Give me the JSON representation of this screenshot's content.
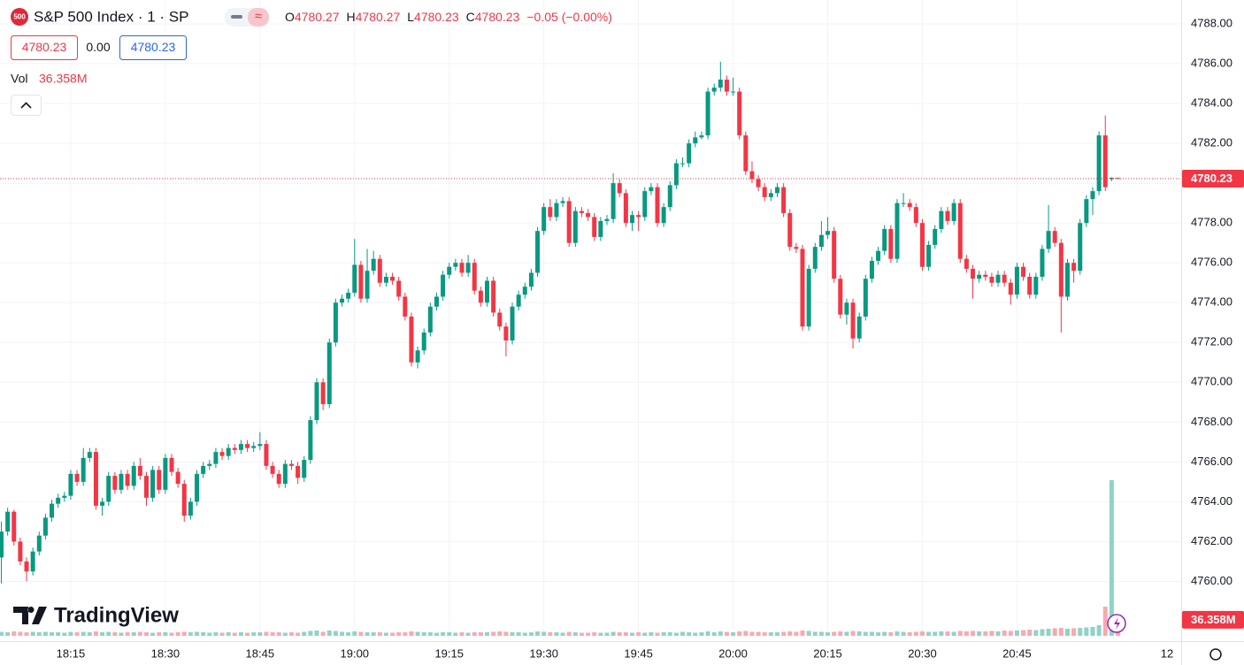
{
  "chart_data": {
    "type": "candlestick",
    "badge": "500",
    "title": "S&P 500 Index · 1 · SP",
    "ohlc_labels": [
      "O",
      "H",
      "L",
      "C"
    ],
    "change_label": "−0.05 (−0.00%)",
    "sell_price": "4780.23",
    "spread": "0.00",
    "buy_price": "4780.23",
    "volume_name": "Vol",
    "volume_last_label": "36.358M",
    "logo": "TradingView",
    "next_day_label": "12",
    "up_color": "#089981",
    "down_color": "#f23645",
    "volume_up_color": "#8fd3c7",
    "volume_down_color": "#f7aab0",
    "grid": true,
    "ylim": [
      4757,
      4789.2
    ],
    "yticks": [
      {
        "value": 4760,
        "label": "4760.00"
      },
      {
        "value": 4762,
        "label": "4762.00"
      },
      {
        "value": 4764,
        "label": "4764.00"
      },
      {
        "value": 4766,
        "label": "4766.00"
      },
      {
        "value": 4768,
        "label": "4768.00"
      },
      {
        "value": 4770,
        "label": "4770.00"
      },
      {
        "value": 4772,
        "label": "4772.00"
      },
      {
        "value": 4774,
        "label": "4774.00"
      },
      {
        "value": 4776,
        "label": "4776.00"
      },
      {
        "value": 4778,
        "label": "4778.00"
      },
      {
        "value": 4780,
        "label": "4780.00"
      },
      {
        "value": 4782,
        "label": "4782.00"
      },
      {
        "value": 4784,
        "label": "4784.00"
      },
      {
        "value": 4786,
        "label": "4786.00"
      },
      {
        "value": 4788,
        "label": "4788.00"
      }
    ],
    "categories": [
      null,
      null,
      null,
      null,
      null,
      null,
      null,
      null,
      null,
      null,
      null,
      "18:15",
      null,
      null,
      null,
      null,
      null,
      null,
      null,
      null,
      null,
      null,
      null,
      null,
      null,
      null,
      "18:30",
      null,
      null,
      null,
      null,
      null,
      null,
      null,
      null,
      null,
      null,
      null,
      null,
      null,
      null,
      "18:45",
      null,
      null,
      null,
      null,
      null,
      null,
      null,
      null,
      null,
      null,
      null,
      null,
      null,
      null,
      "19:00",
      null,
      null,
      null,
      null,
      null,
      null,
      null,
      null,
      null,
      null,
      null,
      null,
      null,
      null,
      "19:15",
      null,
      null,
      null,
      null,
      null,
      null,
      null,
      null,
      null,
      null,
      null,
      null,
      null,
      null,
      "19:30",
      null,
      null,
      null,
      null,
      null,
      null,
      null,
      null,
      null,
      null,
      null,
      null,
      null,
      null,
      "19:45",
      null,
      null,
      null,
      null,
      null,
      null,
      null,
      null,
      null,
      null,
      null,
      null,
      null,
      null,
      "20:00",
      null,
      null,
      null,
      null,
      null,
      null,
      null,
      null,
      null,
      null,
      null,
      null,
      null,
      null,
      "20:15",
      null,
      null,
      null,
      null,
      null,
      null,
      null,
      null,
      null,
      null,
      null,
      null,
      null,
      null,
      "20:30",
      null,
      null,
      null,
      null,
      null,
      null,
      null,
      null,
      null,
      null,
      null,
      null,
      null,
      null,
      "20:45",
      null,
      null,
      null,
      null,
      null,
      null,
      null,
      null,
      null,
      null,
      null,
      null,
      null,
      null,
      null,
      null
    ],
    "ohlc": [
      [
        4761.2,
        4763.0,
        4759.9,
        4762.5
      ],
      [
        4762.5,
        4763.7,
        4762.3,
        4763.5
      ],
      [
        4763.5,
        4763.6,
        4761.8,
        4762.0
      ],
      [
        4762.0,
        4762.2,
        4760.8,
        4761.0
      ],
      [
        4761.0,
        4761.2,
        4760.0,
        4760.5
      ],
      [
        4760.5,
        4761.7,
        4760.3,
        4761.5
      ],
      [
        4761.5,
        4762.5,
        4761.3,
        4762.3
      ],
      [
        4762.3,
        4763.4,
        4762.1,
        4763.2
      ],
      [
        4763.2,
        4764.1,
        4763.0,
        4763.9
      ],
      [
        4763.9,
        4764.4,
        4763.7,
        4764.2
      ],
      [
        4764.2,
        4764.5,
        4764.0,
        4764.3
      ],
      [
        4764.3,
        4765.6,
        4764.1,
        4765.4
      ],
      [
        4765.4,
        4765.6,
        4764.8,
        4765.0
      ],
      [
        4765.0,
        4766.7,
        4764.8,
        4766.2
      ],
      [
        4766.2,
        4766.7,
        4766.0,
        4766.5
      ],
      [
        4766.5,
        4766.7,
        4763.6,
        4763.8
      ],
      [
        4763.8,
        4764.2,
        4763.3,
        4764.0
      ],
      [
        4764.0,
        4765.5,
        4763.8,
        4765.3
      ],
      [
        4765.3,
        4765.5,
        4764.4,
        4764.6
      ],
      [
        4764.6,
        4765.6,
        4764.4,
        4765.4
      ],
      [
        4765.4,
        4765.6,
        4764.6,
        4764.8
      ],
      [
        4764.8,
        4766.0,
        4764.6,
        4765.8
      ],
      [
        4765.8,
        4766.2,
        4765.1,
        4765.3
      ],
      [
        4765.3,
        4765.5,
        4763.8,
        4764.2
      ],
      [
        4764.2,
        4765.8,
        4764.0,
        4765.6
      ],
      [
        4765.6,
        4765.8,
        4764.4,
        4764.6
      ],
      [
        4764.6,
        4766.4,
        4764.4,
        4766.2
      ],
      [
        4766.2,
        4766.4,
        4765.3,
        4765.5
      ],
      [
        4765.5,
        4765.7,
        4764.7,
        4764.9
      ],
      [
        4764.9,
        4765.1,
        4763.0,
        4763.3
      ],
      [
        4763.3,
        4764.2,
        4763.1,
        4764.0
      ],
      [
        4764.0,
        4765.6,
        4763.8,
        4765.4
      ],
      [
        4765.4,
        4766.0,
        4765.2,
        4765.8
      ],
      [
        4765.8,
        4766.1,
        4765.6,
        4765.9
      ],
      [
        4765.9,
        4766.7,
        4765.7,
        4766.5
      ],
      [
        4766.5,
        4766.7,
        4766.1,
        4766.3
      ],
      [
        4766.3,
        4766.9,
        4766.1,
        4766.7
      ],
      [
        4766.7,
        4766.9,
        4766.4,
        4766.6
      ],
      [
        4766.6,
        4767.1,
        4766.4,
        4766.9
      ],
      [
        4766.9,
        4767.1,
        4766.5,
        4766.7
      ],
      [
        4766.7,
        4767.0,
        4766.5,
        4766.8
      ],
      [
        4766.8,
        4767.5,
        4766.6,
        4766.9
      ],
      [
        4766.9,
        4767.1,
        4765.6,
        4765.8
      ],
      [
        4765.8,
        4766.0,
        4765.2,
        4765.4
      ],
      [
        4765.4,
        4765.6,
        4764.7,
        4764.9
      ],
      [
        4764.9,
        4766.1,
        4764.7,
        4765.9
      ],
      [
        4765.9,
        4766.1,
        4765.6,
        4765.8
      ],
      [
        4765.8,
        4766.0,
        4764.9,
        4765.2
      ],
      [
        4765.2,
        4766.3,
        4765.0,
        4766.1
      ],
      [
        4766.1,
        4768.3,
        4765.9,
        4768.1
      ],
      [
        4768.1,
        4770.2,
        4767.9,
        4770.0
      ],
      [
        4770.0,
        4770.2,
        4768.6,
        4768.9
      ],
      [
        4768.9,
        4772.2,
        4768.7,
        4772.0
      ],
      [
        4772.0,
        4774.2,
        4771.8,
        4774.0
      ],
      [
        4774.0,
        4774.4,
        4773.8,
        4774.2
      ],
      [
        4774.2,
        4774.7,
        4774.0,
        4774.5
      ],
      [
        4774.5,
        4777.2,
        4774.3,
        4775.9
      ],
      [
        4775.9,
        4776.1,
        4774.0,
        4774.2
      ],
      [
        4774.2,
        4776.7,
        4774.0,
        4775.6
      ],
      [
        4775.6,
        4776.6,
        4775.4,
        4776.2
      ],
      [
        4776.2,
        4776.4,
        4774.8,
        4775.0
      ],
      [
        4775.0,
        4775.5,
        4774.8,
        4775.3
      ],
      [
        4775.3,
        4775.5,
        4774.9,
        4775.1
      ],
      [
        4775.1,
        4775.3,
        4774.1,
        4774.3
      ],
      [
        4774.3,
        4774.5,
        4773.1,
        4773.3
      ],
      [
        4773.3,
        4773.5,
        4770.8,
        4771.0
      ],
      [
        4771.0,
        4771.8,
        4770.7,
        4771.6
      ],
      [
        4771.6,
        4772.7,
        4771.4,
        4772.5
      ],
      [
        4772.5,
        4774.0,
        4772.3,
        4773.8
      ],
      [
        4773.8,
        4774.5,
        4773.6,
        4774.3
      ],
      [
        4774.3,
        4775.6,
        4774.1,
        4775.4
      ],
      [
        4775.4,
        4776.0,
        4775.2,
        4775.8
      ],
      [
        4775.8,
        4776.2,
        4775.6,
        4776.0
      ],
      [
        4776.0,
        4776.2,
        4775.3,
        4775.5
      ],
      [
        4775.5,
        4776.4,
        4775.3,
        4776.0
      ],
      [
        4776.0,
        4776.2,
        4774.4,
        4774.6
      ],
      [
        4774.6,
        4774.8,
        4773.8,
        4774.0
      ],
      [
        4774.0,
        4775.3,
        4773.8,
        4775.1
      ],
      [
        4775.1,
        4775.3,
        4773.3,
        4773.5
      ],
      [
        4773.5,
        4773.7,
        4772.6,
        4772.8
      ],
      [
        4772.8,
        4773.0,
        4771.3,
        4772.1
      ],
      [
        4772.1,
        4774.0,
        4771.9,
        4773.8
      ],
      [
        4773.8,
        4774.6,
        4773.6,
        4774.4
      ],
      [
        4774.4,
        4775.0,
        4774.2,
        4774.8
      ],
      [
        4774.8,
        4775.7,
        4774.6,
        4775.5
      ],
      [
        4775.5,
        4777.8,
        4775.3,
        4777.6
      ],
      [
        4777.6,
        4779.0,
        4777.4,
        4778.8
      ],
      [
        4778.8,
        4779.2,
        4778.1,
        4778.3
      ],
      [
        4778.3,
        4779.2,
        4778.1,
        4779.0
      ],
      [
        4779.0,
        4779.3,
        4778.8,
        4779.1
      ],
      [
        4779.1,
        4779.3,
        4776.8,
        4777.0
      ],
      [
        4777.0,
        4778.8,
        4776.8,
        4778.6
      ],
      [
        4778.6,
        4778.8,
        4778.3,
        4778.5
      ],
      [
        4778.5,
        4778.7,
        4778.1,
        4778.3
      ],
      [
        4778.3,
        4778.5,
        4777.1,
        4777.3
      ],
      [
        4777.3,
        4778.3,
        4777.1,
        4778.1
      ],
      [
        4778.1,
        4778.4,
        4777.9,
        4778.2
      ],
      [
        4778.2,
        4780.5,
        4778.0,
        4780.0
      ],
      [
        4780.0,
        4780.2,
        4779.3,
        4779.5
      ],
      [
        4779.5,
        4779.7,
        4777.8,
        4778.0
      ],
      [
        4778.0,
        4778.6,
        4777.6,
        4778.4
      ],
      [
        4778.4,
        4778.6,
        4777.6,
        4778.3
      ],
      [
        4778.3,
        4779.8,
        4778.1,
        4779.6
      ],
      [
        4779.6,
        4780.0,
        4779.4,
        4779.8
      ],
      [
        4779.8,
        4780.0,
        4777.8,
        4778.0
      ],
      [
        4778.0,
        4779.0,
        4777.8,
        4778.8
      ],
      [
        4778.8,
        4780.1,
        4778.6,
        4779.9
      ],
      [
        4779.9,
        4781.2,
        4779.7,
        4781.0
      ],
      [
        4781.0,
        4781.3,
        4780.8,
        4781.0
      ],
      [
        4781.0,
        4782.2,
        4780.8,
        4782.0
      ],
      [
        4782.0,
        4782.6,
        4781.8,
        4782.3
      ],
      [
        4782.3,
        4782.6,
        4782.2,
        4782.4
      ],
      [
        4782.4,
        4784.8,
        4782.2,
        4784.6
      ],
      [
        4784.6,
        4785.0,
        4784.4,
        4784.8
      ],
      [
        4784.8,
        4786.1,
        4784.6,
        4785.2
      ],
      [
        4785.2,
        4785.4,
        4784.4,
        4784.6
      ],
      [
        4784.6,
        4785.3,
        4784.4,
        4784.6
      ],
      [
        4784.6,
        4784.8,
        4782.2,
        4782.4
      ],
      [
        4782.4,
        4782.6,
        4780.4,
        4780.6
      ],
      [
        4780.6,
        4781.1,
        4780.0,
        4780.2
      ],
      [
        4780.2,
        4780.4,
        4779.6,
        4779.8
      ],
      [
        4779.8,
        4780.0,
        4779.1,
        4779.3
      ],
      [
        4779.3,
        4779.7,
        4779.1,
        4779.5
      ],
      [
        4779.5,
        4780.0,
        4779.3,
        4779.8
      ],
      [
        4779.8,
        4780.0,
        4778.3,
        4778.5
      ],
      [
        4778.5,
        4778.7,
        4776.6,
        4776.8
      ],
      [
        4776.8,
        4777.0,
        4776.5,
        4776.7
      ],
      [
        4776.7,
        4776.9,
        4772.6,
        4772.8
      ],
      [
        4772.8,
        4775.9,
        4772.6,
        4775.7
      ],
      [
        4775.7,
        4777.0,
        4775.5,
        4776.8
      ],
      [
        4776.8,
        4778.1,
        4776.6,
        4777.4
      ],
      [
        4777.4,
        4778.3,
        4777.2,
        4777.6
      ],
      [
        4777.6,
        4777.8,
        4775.0,
        4775.2
      ],
      [
        4775.2,
        4775.4,
        4773.2,
        4773.4
      ],
      [
        4773.4,
        4774.2,
        4772.9,
        4774.0
      ],
      [
        4774.0,
        4774.2,
        4771.7,
        4772.2
      ],
      [
        4772.2,
        4773.5,
        4772.0,
        4773.3
      ],
      [
        4773.3,
        4775.4,
        4773.1,
        4775.2
      ],
      [
        4775.2,
        4776.3,
        4775.0,
        4776.1
      ],
      [
        4776.1,
        4776.8,
        4775.9,
        4776.6
      ],
      [
        4776.6,
        4777.9,
        4776.4,
        4777.7
      ],
      [
        4777.7,
        4777.9,
        4776.0,
        4776.2
      ],
      [
        4776.2,
        4779.2,
        4776.0,
        4779.0
      ],
      [
        4779.0,
        4779.5,
        4778.8,
        4779.0
      ],
      [
        4779.0,
        4779.2,
        4778.6,
        4778.8
      ],
      [
        4778.8,
        4779.0,
        4777.8,
        4778.0
      ],
      [
        4778.0,
        4778.2,
        4775.6,
        4775.8
      ],
      [
        4775.8,
        4777.1,
        4775.6,
        4776.9
      ],
      [
        4776.9,
        4777.9,
        4776.7,
        4777.7
      ],
      [
        4777.7,
        4778.8,
        4777.5,
        4778.6
      ],
      [
        4778.6,
        4778.8,
        4777.9,
        4778.1
      ],
      [
        4778.1,
        4779.2,
        4777.9,
        4779.0
      ],
      [
        4779.0,
        4779.2,
        4776.0,
        4776.2
      ],
      [
        4776.2,
        4776.4,
        4775.5,
        4775.7
      ],
      [
        4775.7,
        4775.9,
        4774.2,
        4775.2
      ],
      [
        4775.2,
        4775.6,
        4775.0,
        4775.4
      ],
      [
        4775.4,
        4775.6,
        4775.1,
        4775.3
      ],
      [
        4775.3,
        4775.5,
        4774.8,
        4775.0
      ],
      [
        4775.0,
        4775.6,
        4774.8,
        4775.4
      ],
      [
        4775.4,
        4775.6,
        4774.8,
        4775.0
      ],
      [
        4775.0,
        4775.2,
        4773.9,
        4774.4
      ],
      [
        4774.4,
        4776.0,
        4774.2,
        4775.8
      ],
      [
        4775.8,
        4776.0,
        4775.1,
        4775.3
      ],
      [
        4775.3,
        4775.5,
        4774.2,
        4774.4
      ],
      [
        4774.4,
        4775.5,
        4774.2,
        4775.3
      ],
      [
        4775.3,
        4776.9,
        4775.1,
        4776.7
      ],
      [
        4776.7,
        4778.9,
        4776.5,
        4777.6
      ],
      [
        4777.6,
        4777.8,
        4776.8,
        4777.0
      ],
      [
        4777.0,
        4777.2,
        4772.5,
        4774.3
      ],
      [
        4774.3,
        4776.2,
        4774.1,
        4776.0
      ],
      [
        4776.0,
        4776.2,
        4775.0,
        4775.6
      ],
      [
        4775.6,
        4778.2,
        4775.4,
        4778.0
      ],
      [
        4778.0,
        4779.4,
        4777.8,
        4779.2
      ],
      [
        4779.2,
        4779.8,
        4778.4,
        4779.6
      ],
      [
        4779.6,
        4782.6,
        4779.4,
        4782.4
      ],
      [
        4782.4,
        4783.4,
        4779.6,
        4779.8
      ],
      [
        4780.2,
        4780.3,
        4780.1,
        4780.27
      ],
      [
        4780.27,
        4780.27,
        4780.23,
        4780.23
      ]
    ],
    "volume": [
      9,
      8,
      10,
      9,
      8,
      9,
      8,
      9,
      8,
      8,
      7,
      9,
      8,
      9,
      8,
      10,
      8,
      9,
      8,
      7,
      8,
      8,
      9,
      8,
      7,
      8,
      8,
      7,
      8,
      9,
      8,
      9,
      8,
      7,
      8,
      7,
      8,
      7,
      8,
      7,
      8,
      8,
      9,
      8,
      8,
      7,
      8,
      7,
      9,
      11,
      12,
      9,
      12,
      11,
      9,
      8,
      10,
      9,
      8,
      8,
      8,
      7,
      7,
      8,
      8,
      10,
      9,
      8,
      8,
      7,
      8,
      8,
      7,
      8,
      7,
      8,
      8,
      8,
      9,
      10,
      9,
      8,
      8,
      7,
      8,
      10,
      9,
      8,
      8,
      7,
      9,
      8,
      7,
      7,
      8,
      7,
      7,
      9,
      8,
      8,
      7,
      8,
      7,
      8,
      7,
      8,
      8,
      7,
      9,
      8,
      7,
      8,
      10,
      8,
      10,
      9,
      8,
      10,
      11,
      9,
      9,
      8,
      8,
      8,
      9,
      10,
      9,
      12,
      11,
      9,
      9,
      8,
      9,
      10,
      9,
      11,
      10,
      9,
      9,
      8,
      9,
      8,
      10,
      9,
      8,
      9,
      10,
      9,
      9,
      10,
      10,
      9,
      11,
      10,
      11,
      10,
      10,
      11,
      10,
      12,
      11,
      12,
      13,
      14,
      13,
      15,
      16,
      17,
      18,
      16,
      17,
      18,
      19,
      20,
      24,
      66,
      352,
      36.358
    ]
  }
}
